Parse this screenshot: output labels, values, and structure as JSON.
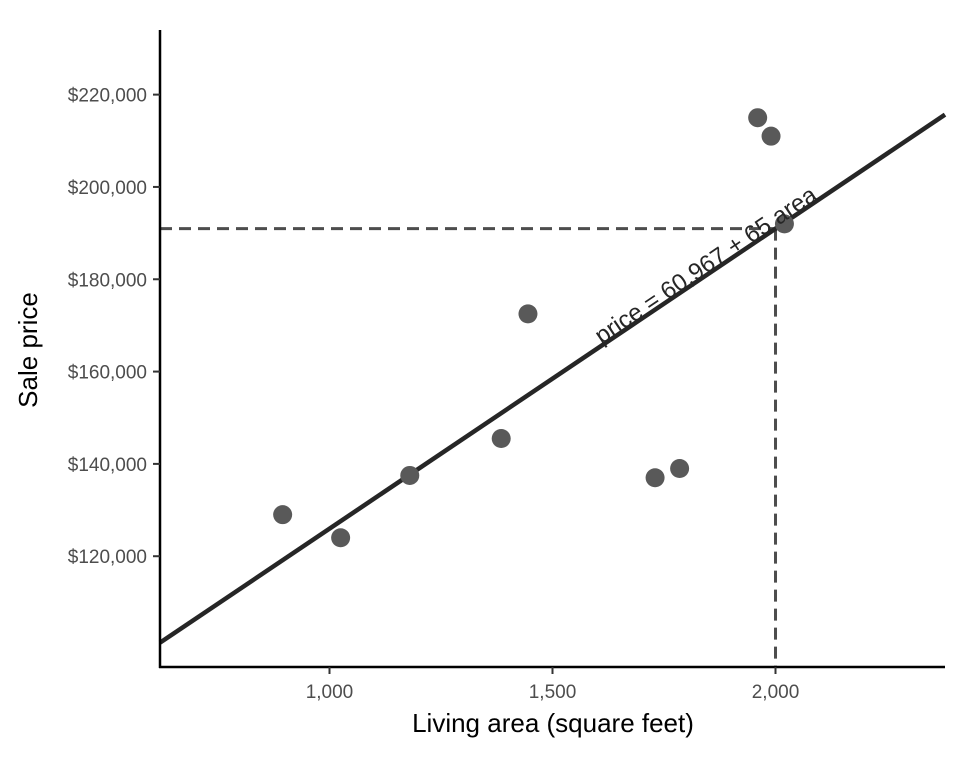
{
  "chart_data": {
    "type": "scatter",
    "title": "",
    "xlabel": "Living area (square feet)",
    "ylabel": "Sale price",
    "xlim": [
      620,
      2380
    ],
    "ylim": [
      96000,
      234000
    ],
    "x_ticks": [
      {
        "value": 1000,
        "label": "1,000"
      },
      {
        "value": 1500,
        "label": "1,500"
      },
      {
        "value": 2000,
        "label": "2,000"
      }
    ],
    "y_ticks": [
      {
        "value": 120000,
        "label": "$120,000"
      },
      {
        "value": 140000,
        "label": "$140,000"
      },
      {
        "value": 160000,
        "label": "$160,000"
      },
      {
        "value": 180000,
        "label": "$180,000"
      },
      {
        "value": 200000,
        "label": "$200,000"
      },
      {
        "value": 220000,
        "label": "$220,000"
      }
    ],
    "points": [
      {
        "x": 895,
        "y": 129000
      },
      {
        "x": 1025,
        "y": 124000
      },
      {
        "x": 1180,
        "y": 137500
      },
      {
        "x": 1385,
        "y": 145500
      },
      {
        "x": 1445,
        "y": 172500
      },
      {
        "x": 1730,
        "y": 137000
      },
      {
        "x": 1785,
        "y": 139000
      },
      {
        "x": 1960,
        "y": 215000
      },
      {
        "x": 1990,
        "y": 211000
      },
      {
        "x": 2020,
        "y": 192000
      }
    ],
    "regression": {
      "intercept": 60967,
      "slope": 65,
      "label": "price = 60,967 + 65 area"
    },
    "reference": {
      "x": 2000,
      "y": 190967
    },
    "grid": false,
    "legend": "none",
    "colors": {
      "points": "#595959",
      "line": "#262626",
      "reference": "#4d4d4d",
      "axis": "#000000"
    }
  }
}
